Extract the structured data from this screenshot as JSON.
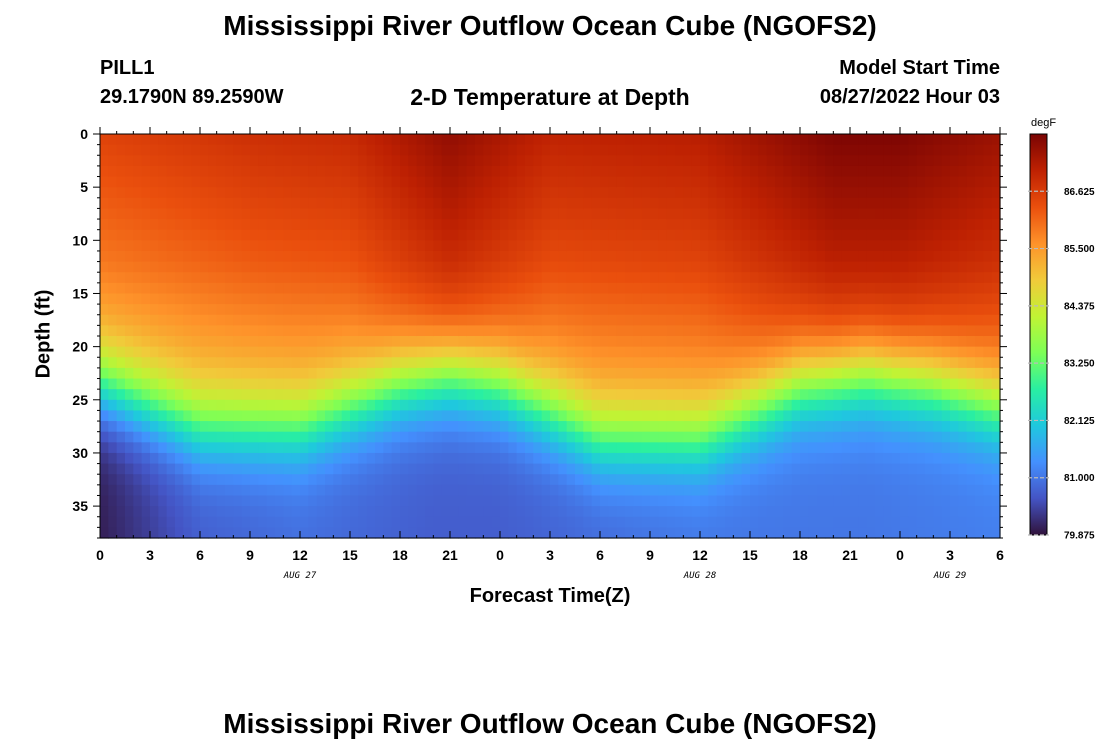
{
  "header": {
    "title": "Mississippi River Outflow Ocean Cube (NGOFS2)",
    "station": "PILL1",
    "coords": "29.1790N  89.2590W",
    "plot_label": "2-D Temperature at Depth",
    "model_start_label": "Model Start Time",
    "model_start_value": "08/27/2022 Hour 03"
  },
  "footer": {
    "title": "Mississippi River Outflow Ocean Cube (NGOFS2)"
  },
  "chart_data": {
    "type": "heatmap",
    "xlabel": "Forecast Time(Z)",
    "ylabel": "Depth (ft)",
    "x_range_hours": [
      0,
      54
    ],
    "y_range_ft": [
      0,
      38
    ],
    "y_ticks": [
      0,
      5,
      10,
      15,
      20,
      25,
      30,
      35
    ],
    "x_ticks": [
      "0",
      "3",
      "6",
      "9",
      "12",
      "15",
      "18",
      "21",
      "0",
      "3",
      "6",
      "9",
      "12",
      "15",
      "18",
      "21",
      "0",
      "3",
      "6"
    ],
    "day_labels": [
      {
        "text": "AUG 27",
        "hour": 12
      },
      {
        "text": "AUG 28",
        "hour": 36
      },
      {
        "text": "AUG 29",
        "hour": 51
      }
    ],
    "colorbar": {
      "unit": "degF",
      "range": [
        79.875,
        87.75
      ],
      "labels": [
        "86.625",
        "85.500",
        "84.375",
        "83.250",
        "82.125",
        "81.000",
        "79.875"
      ],
      "colors": [
        "#30123b",
        "#4454c4",
        "#4490fe",
        "#1fc8de",
        "#29efa2",
        "#7dff56",
        "#c1f334",
        "#f1ca3a",
        "#fe922a",
        "#ea4f0d",
        "#be2102",
        "#7a0403"
      ]
    },
    "field_description_sampled": {
      "thermocline_depth_ft": [
        [
          0,
          24
        ],
        [
          6,
          28
        ],
        [
          12,
          28
        ],
        [
          18,
          24
        ],
        [
          21,
          23
        ],
        [
          24,
          24
        ],
        [
          30,
          29
        ],
        [
          36,
          29
        ],
        [
          42,
          24
        ],
        [
          46,
          23
        ],
        [
          50,
          24
        ],
        [
          54,
          26
        ]
      ],
      "surface_temp_degF": [
        [
          0,
          86.5
        ],
        [
          9,
          86.8
        ],
        [
          15,
          86.9
        ],
        [
          21,
          87.5
        ],
        [
          27,
          87.0
        ],
        [
          36,
          87.1
        ],
        [
          44,
          87.7
        ],
        [
          48,
          87.7
        ],
        [
          54,
          87.4
        ]
      ],
      "bottom_temp_degF": [
        [
          0,
          80.0
        ],
        [
          6,
          80.7
        ],
        [
          12,
          80.9
        ],
        [
          20,
          80.7
        ],
        [
          24,
          80.7
        ],
        [
          36,
          81.0
        ],
        [
          46,
          81.0
        ],
        [
          54,
          81.1
        ]
      ]
    }
  }
}
